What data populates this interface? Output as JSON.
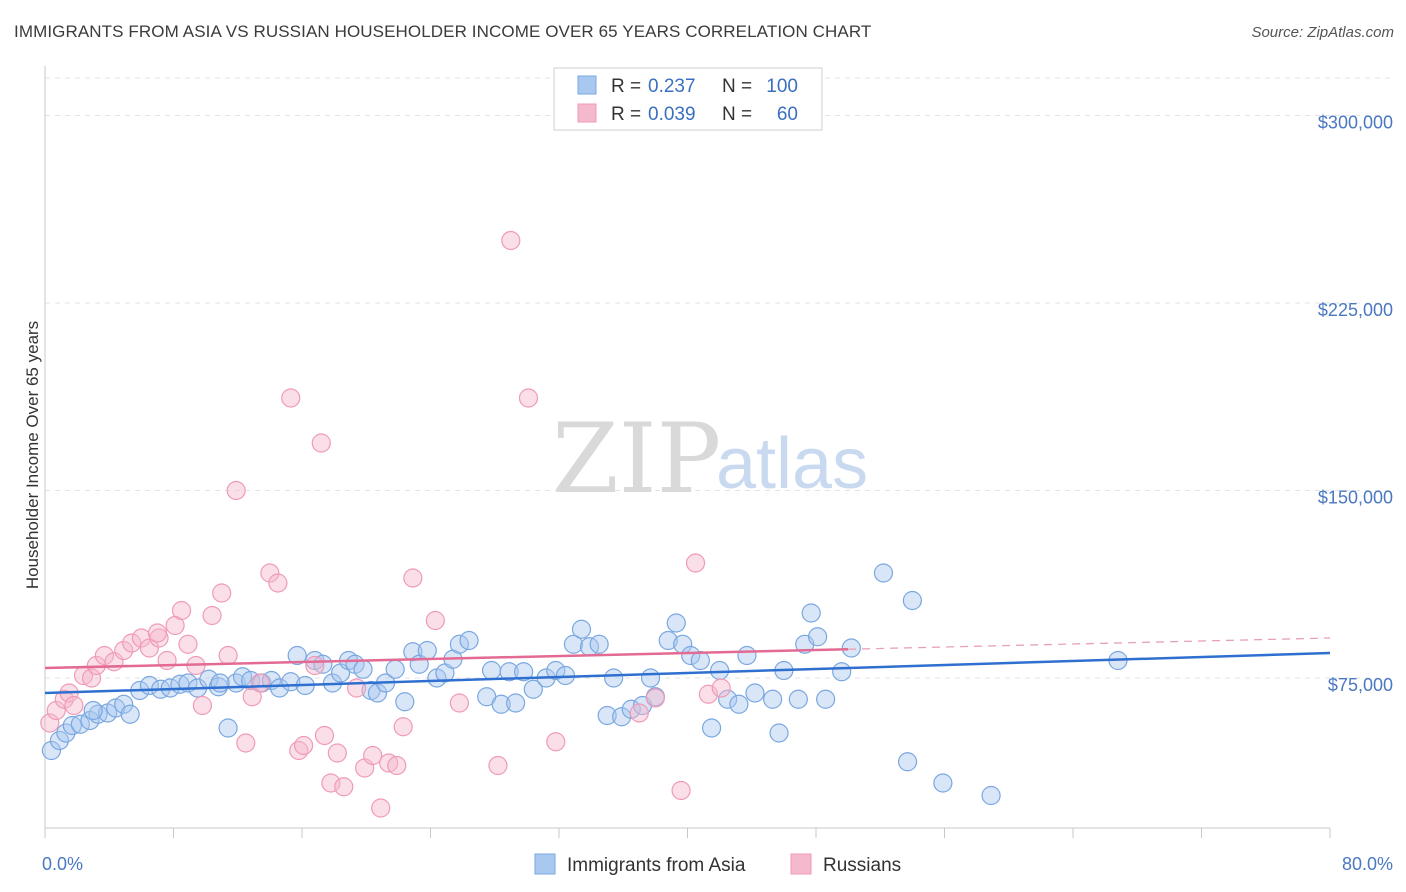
{
  "title": "IMMIGRANTS FROM ASIA VS RUSSIAN HOUSEHOLDER INCOME OVER 65 YEARS CORRELATION CHART",
  "source": "Source: ZipAtlas.com",
  "watermark": {
    "zip": "ZIP",
    "atlas": "atlas"
  },
  "legend": {
    "rows": [
      {
        "r_label": "R =",
        "r_value": "0.237",
        "n_label": "N =",
        "n_value": "100",
        "color": "#a9c8f0"
      },
      {
        "r_label": "R =",
        "r_value": "0.039",
        "n_label": "N =",
        "n_value": "60",
        "color": "#f4b9cc"
      }
    ]
  },
  "bottom_legend": [
    "Immigrants from Asia",
    "Russians"
  ],
  "chart_data": {
    "type": "scatter",
    "title": "IMMIGRANTS FROM ASIA VS RUSSIAN HOUSEHOLDER INCOME OVER 65 YEARS CORRELATION CHART",
    "xlabel": "",
    "ylabel": "Householder Income Over 65 years",
    "xlim": [
      0,
      80
    ],
    "ylim": [
      15000,
      315000
    ],
    "x_tick_labels": [
      "0.0%",
      "80.0%"
    ],
    "y_ticks": [
      75000,
      150000,
      225000,
      300000
    ],
    "y_tick_labels": [
      "$75,000",
      "$150,000",
      "$225,000",
      "$300,000"
    ],
    "series": [
      {
        "name": "Immigrants from Asia",
        "color": "#7aa7e0",
        "trend": {
          "x0": 0,
          "y0": 69000,
          "x1": 80,
          "y1": 85000
        },
        "points": [
          [
            0.4,
            46000
          ],
          [
            0.9,
            50000
          ],
          [
            1.3,
            53000
          ],
          [
            1.7,
            56000
          ],
          [
            2.2,
            56500
          ],
          [
            2.8,
            58000
          ],
          [
            3.3,
            60500
          ],
          [
            3.9,
            61000
          ],
          [
            4.4,
            63000
          ],
          [
            4.9,
            64500
          ],
          [
            5.3,
            60500
          ],
          [
            5.9,
            70000
          ],
          [
            6.5,
            72000
          ],
          [
            7.2,
            70500
          ],
          [
            7.8,
            71000
          ],
          [
            8.4,
            72500
          ],
          [
            8.9,
            73000
          ],
          [
            9.5,
            71000
          ],
          [
            10.2,
            74500
          ],
          [
            10.8,
            71500
          ],
          [
            11.4,
            55000
          ],
          [
            11.9,
            73000
          ],
          [
            12.3,
            75500
          ],
          [
            12.8,
            74000
          ],
          [
            13.5,
            73000
          ],
          [
            14.1,
            74000
          ],
          [
            14.6,
            71000
          ],
          [
            15.3,
            73500
          ],
          [
            15.7,
            84000
          ],
          [
            16.2,
            72000
          ],
          [
            16.8,
            82000
          ],
          [
            17.3,
            80500
          ],
          [
            17.9,
            73000
          ],
          [
            18.4,
            77000
          ],
          [
            18.9,
            82000
          ],
          [
            19.3,
            80500
          ],
          [
            19.8,
            78500
          ],
          [
            20.3,
            70000
          ],
          [
            20.7,
            69000
          ],
          [
            21.2,
            73000
          ],
          [
            21.8,
            78500
          ],
          [
            22.4,
            65500
          ],
          [
            22.9,
            85500
          ],
          [
            23.3,
            80500
          ],
          [
            23.8,
            86000
          ],
          [
            24.4,
            75000
          ],
          [
            24.9,
            77000
          ],
          [
            25.4,
            82500
          ],
          [
            25.8,
            88500
          ],
          [
            26.4,
            90000
          ],
          [
            27.5,
            67500
          ],
          [
            27.8,
            78000
          ],
          [
            28.4,
            64500
          ],
          [
            28.9,
            77500
          ],
          [
            29.3,
            65000
          ],
          [
            29.8,
            77500
          ],
          [
            30.4,
            70500
          ],
          [
            31.2,
            75000
          ],
          [
            31.8,
            78000
          ],
          [
            32.4,
            76000
          ],
          [
            32.9,
            88500
          ],
          [
            33.4,
            94500
          ],
          [
            33.9,
            87500
          ],
          [
            34.5,
            88500
          ],
          [
            35.0,
            60000
          ],
          [
            35.4,
            75000
          ],
          [
            35.9,
            59500
          ],
          [
            36.5,
            62500
          ],
          [
            37.2,
            64000
          ],
          [
            37.7,
            75000
          ],
          [
            38.0,
            67500
          ],
          [
            38.8,
            90000
          ],
          [
            39.3,
            97000
          ],
          [
            39.7,
            88500
          ],
          [
            40.2,
            84000
          ],
          [
            40.8,
            82000
          ],
          [
            41.5,
            55000
          ],
          [
            42.0,
            78000
          ],
          [
            42.5,
            66500
          ],
          [
            43.2,
            64500
          ],
          [
            43.7,
            84000
          ],
          [
            44.2,
            69000
          ],
          [
            45.3,
            66500
          ],
          [
            45.7,
            53000
          ],
          [
            46.0,
            78000
          ],
          [
            46.9,
            66500
          ],
          [
            47.3,
            88500
          ],
          [
            47.7,
            101000
          ],
          [
            48.1,
            91500
          ],
          [
            48.6,
            66500
          ],
          [
            49.6,
            77500
          ],
          [
            50.2,
            87000
          ],
          [
            52.2,
            117000
          ],
          [
            53.7,
            41500
          ],
          [
            54.0,
            106000
          ],
          [
            55.9,
            33000
          ],
          [
            58.9,
            28000
          ],
          [
            66.8,
            82000
          ],
          [
            3.0,
            62000
          ],
          [
            10.9,
            73000
          ]
        ]
      },
      {
        "name": "Russians",
        "color": "#f09ab6",
        "trend": {
          "x0": 0,
          "y0": 79000,
          "x1": 50,
          "y1": 86500,
          "dash_x1": 80,
          "dash_y1": 91000
        },
        "points": [
          [
            0.3,
            57000
          ],
          [
            0.7,
            62000
          ],
          [
            1.2,
            66500
          ],
          [
            1.5,
            69000
          ],
          [
            1.8,
            64000
          ],
          [
            2.4,
            76000
          ],
          [
            2.9,
            75000
          ],
          [
            3.2,
            80000
          ],
          [
            3.7,
            84000
          ],
          [
            4.3,
            81500
          ],
          [
            4.9,
            86000
          ],
          [
            5.4,
            89000
          ],
          [
            6.0,
            91000
          ],
          [
            6.5,
            87000
          ],
          [
            7.1,
            91000
          ],
          [
            7.6,
            82000
          ],
          [
            8.1,
            96000
          ],
          [
            8.5,
            102000
          ],
          [
            8.9,
            88500
          ],
          [
            9.4,
            80000
          ],
          [
            9.8,
            64000
          ],
          [
            10.4,
            100000
          ],
          [
            11.0,
            109000
          ],
          [
            11.4,
            84000
          ],
          [
            11.9,
            150000
          ],
          [
            12.5,
            49000
          ],
          [
            12.9,
            67500
          ],
          [
            13.4,
            73000
          ],
          [
            14.0,
            117000
          ],
          [
            14.5,
            113000
          ],
          [
            15.3,
            187000
          ],
          [
            15.8,
            46000
          ],
          [
            16.1,
            48000
          ],
          [
            16.8,
            80000
          ],
          [
            17.2,
            169000
          ],
          [
            17.4,
            52000
          ],
          [
            17.8,
            33000
          ],
          [
            18.2,
            45000
          ],
          [
            18.6,
            31500
          ],
          [
            19.4,
            71000
          ],
          [
            19.9,
            39000
          ],
          [
            20.4,
            44000
          ],
          [
            20.9,
            23000
          ],
          [
            21.4,
            41000
          ],
          [
            21.9,
            40000
          ],
          [
            22.3,
            55500
          ],
          [
            22.9,
            115000
          ],
          [
            24.3,
            98000
          ],
          [
            25.8,
            65000
          ],
          [
            28.2,
            40000
          ],
          [
            29.0,
            250000
          ],
          [
            30.1,
            187000
          ],
          [
            31.8,
            49500
          ],
          [
            37.0,
            61000
          ],
          [
            38.0,
            67000
          ],
          [
            39.6,
            30000
          ],
          [
            40.5,
            121000
          ],
          [
            41.3,
            68500
          ],
          [
            42.1,
            71000
          ],
          [
            7.0,
            93000
          ]
        ]
      }
    ]
  }
}
